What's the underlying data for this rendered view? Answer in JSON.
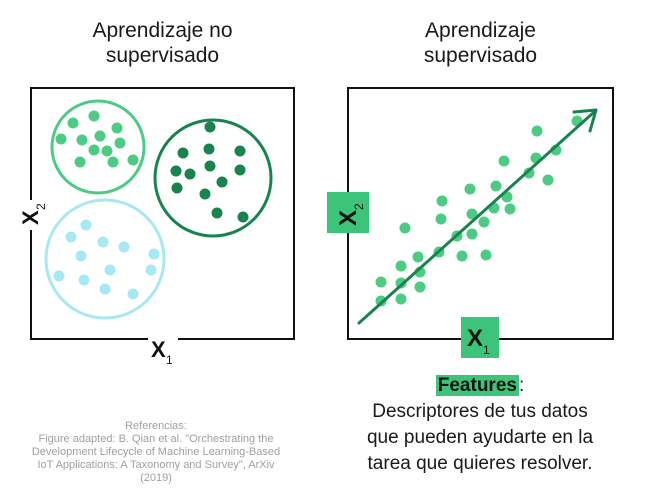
{
  "titles": {
    "left": "Aprendizaje no\nsupervisado",
    "right": "Aprendizaje\nsupervisado"
  },
  "axes": {
    "x_base": "X",
    "x_sub": "1",
    "y_base": "X",
    "y_sub": "2"
  },
  "colors": {
    "light_green": "#4ccb82",
    "dark_green": "#17844e",
    "light_blue": "#a6e8f4",
    "accent_green": "#3cc47a",
    "frame": "#111111"
  },
  "features": {
    "keyword": "Features",
    "colon": ":",
    "description": "Descriptores de tus datos\nque pueden ayudarte en la\ntarea que quieres resolver."
  },
  "references": {
    "heading": "Referencias:",
    "body": "Figure adapted: B. Qian et al. \"Orchestrating the\nDevelopment Lifecycle of Machine Learning-Based\nIoT Applications: A Taxonomy and Survey\", ArXiv\n(2019)"
  }
}
